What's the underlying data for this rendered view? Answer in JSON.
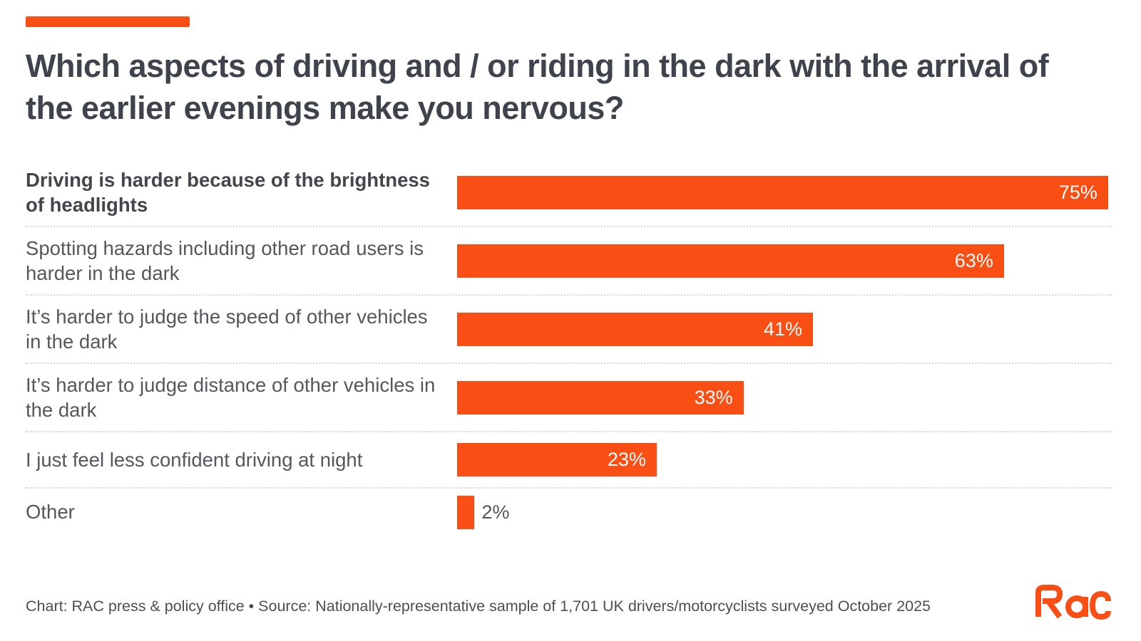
{
  "accent_color": "#f94f14",
  "title": "Which aspects of driving and / or riding in the dark with the arrival of the earlier evenings make you nervous?",
  "chart_data": {
    "type": "bar",
    "orientation": "horizontal",
    "title": "Which aspects of driving and / or riding in the dark with the arrival of the earlier evenings make you nervous?",
    "categories": [
      {
        "label": "Driving is harder because of the brightness of headlights",
        "bold": true
      },
      {
        "label": "Spotting hazards including other road users is harder in the dark",
        "bold": false
      },
      {
        "label": "It’s harder to judge the speed of other vehicles in the dark",
        "bold": false
      },
      {
        "label": "It’s harder to judge distance of other vehicles in the dark",
        "bold": false
      },
      {
        "label": "I just feel less confident driving at night",
        "bold": false
      },
      {
        "label": "Other",
        "bold": false
      }
    ],
    "values": [
      75,
      63,
      41,
      33,
      23,
      2
    ],
    "value_suffix": "%",
    "xlabel": "",
    "ylabel": "",
    "xlim": [
      0,
      75.5
    ],
    "grid": false,
    "legend": "none",
    "bar_color": "#f94f14",
    "value_label_color_inside": "#ffffff",
    "value_label_color_outside": "#54575e"
  },
  "footer": {
    "credit": "Chart: RAC press & policy office • Source: Nationally-representative sample of 1,701 UK drivers/motorcyclists surveyed October 2025"
  },
  "logo": {
    "name": "RAC",
    "color": "#f94f14"
  }
}
